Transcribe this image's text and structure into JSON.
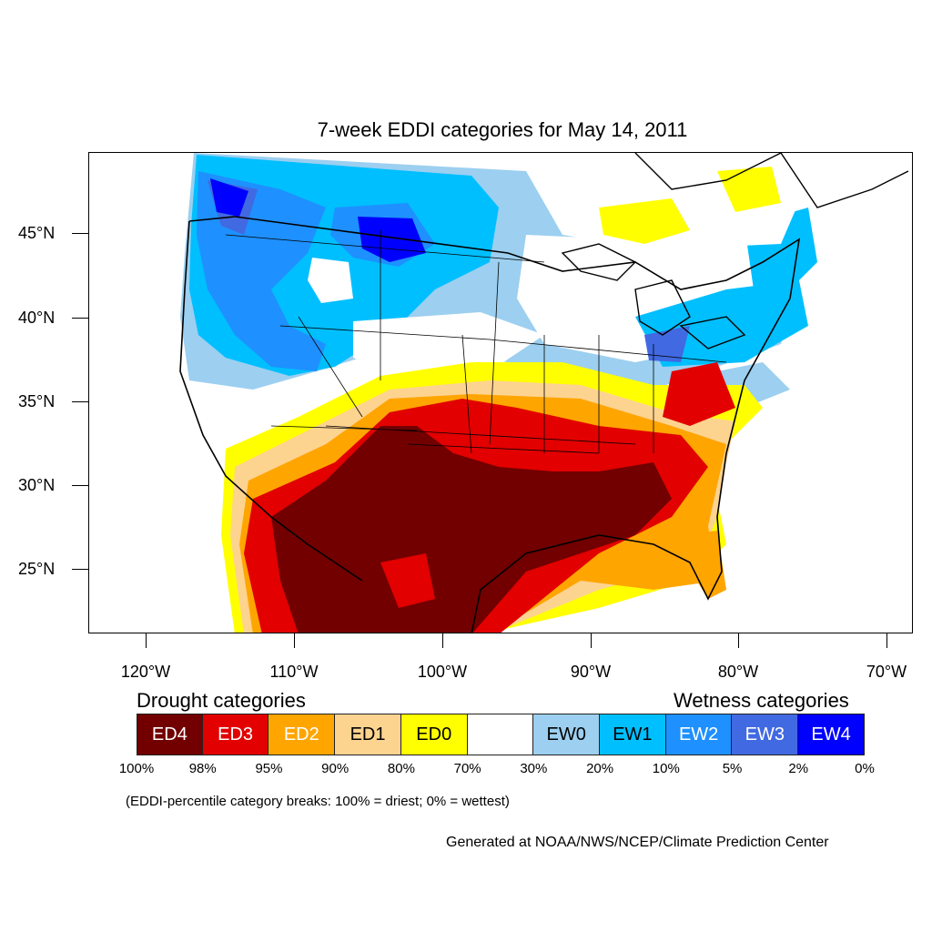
{
  "title": "7-week EDDI categories for May 14, 2011",
  "lat_labels": [
    "45°N",
    "40°N",
    "35°N",
    "30°N",
    "25°N"
  ],
  "lon_labels": [
    "120°W",
    "110°W",
    "100°W",
    "90°W",
    "80°W",
    "70°W"
  ],
  "legend": {
    "drought_heading": "Drought categories",
    "wetness_heading": "Wetness categories",
    "categories": [
      {
        "label": "ED4",
        "color": "#720000",
        "text_color": "#ffffff"
      },
      {
        "label": "ED3",
        "color": "#e20000",
        "text_color": "#ffffff"
      },
      {
        "label": "ED2",
        "color": "#ffa500",
        "text_color": "#ffffff"
      },
      {
        "label": "ED1",
        "color": "#fdd390",
        "text_color": "#000000"
      },
      {
        "label": "ED0",
        "color": "#ffff00",
        "text_color": "#000000"
      },
      {
        "label": "",
        "color": "#ffffff",
        "text_color": "#000000"
      },
      {
        "label": "EW0",
        "color": "#9ccff0",
        "text_color": "#000000"
      },
      {
        "label": "EW1",
        "color": "#00bfff",
        "text_color": "#000000"
      },
      {
        "label": "EW2",
        "color": "#1e90ff",
        "text_color": "#ffffff"
      },
      {
        "label": "EW3",
        "color": "#4169e1",
        "text_color": "#ffffff"
      },
      {
        "label": "EW4",
        "color": "#0000ff",
        "text_color": "#ffffff"
      }
    ],
    "breaks": [
      "100%",
      "98%",
      "95%",
      "90%",
      "80%",
      "70%",
      "30%",
      "20%",
      "10%",
      "5%",
      "2%",
      "0%"
    ]
  },
  "note": "(EDDI-percentile category breaks: 100% = driest; 0% = wettest)",
  "credit": "Generated at NOAA/NWS/NCEP/Climate Prediction Center"
}
